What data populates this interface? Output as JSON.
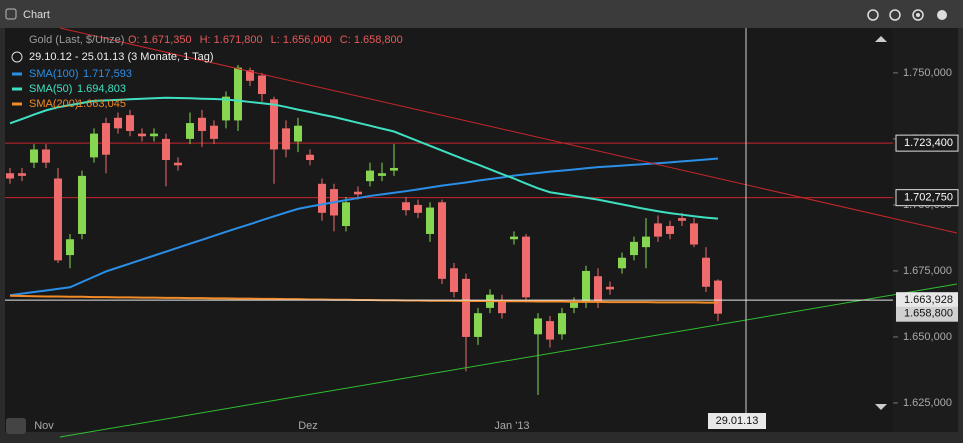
{
  "chart_data": {
    "type": "candlestick",
    "title": "Chart",
    "instrument": "Gold (Last, $/Unze)",
    "ohlc_labels": [
      "O: 1.671,350",
      "H: 1.671,800",
      "L: 1.656,000",
      "C: 1.658,800"
    ],
    "range": "29.10.12 - 25.01.13 (3 Monate, 1 Tag)",
    "categories": [
      null,
      null,
      null,
      "Nov",
      null,
      null,
      null,
      null,
      null,
      null,
      null,
      null,
      null,
      null,
      null,
      null,
      null,
      null,
      null,
      null,
      null,
      null,
      null,
      null,
      null,
      "Dez",
      null,
      null,
      null,
      null,
      null,
      null,
      null,
      null,
      null,
      null,
      null,
      null,
      null,
      null,
      null,
      null,
      "Jan '13",
      null,
      null,
      null,
      null,
      null,
      null,
      null,
      null,
      null,
      null,
      null,
      null,
      null,
      null,
      null,
      null,
      null
    ],
    "open": [
      1712,
      1712,
      1716,
      1721,
      1710,
      1681,
      1689,
      1718,
      1731,
      1733,
      1734,
      1727,
      1726,
      1725,
      1716,
      1725,
      1733,
      1730,
      1732,
      1732,
      1751,
      1749,
      1740,
      1729,
      1724,
      1719,
      1708,
      1706,
      1692,
      1705,
      1709,
      1711,
      1713,
      1701,
      1700,
      1689,
      1701,
      1676,
      1672,
      1650,
      1661,
      1664,
      1687,
      1688,
      1651,
      1656,
      1651,
      1661,
      1663,
      1673,
      1669,
      1676,
      1681,
      1684,
      1693,
      1692,
      1695,
      1693,
      1680,
      1671.35
    ],
    "high": [
      1714,
      1714,
      1723,
      1723,
      1714,
      1689,
      1713,
      1729,
      1733,
      1735,
      1736,
      1729,
      1729,
      1727,
      1718,
      1735,
      1736,
      1732,
      1743,
      1753,
      1752,
      1750,
      1741,
      1732,
      1733,
      1721,
      1710,
      1708,
      1703,
      1707,
      1716,
      1716,
      1723,
      1703,
      1702,
      1701,
      1702,
      1678,
      1674,
      1661,
      1668,
      1666,
      1690,
      1689,
      1659,
      1658,
      1661,
      1665,
      1677,
      1676,
      1671,
      1682,
      1688,
      1695,
      1696,
      1694,
      1697,
      1695,
      1684,
      1671.8
    ],
    "low": [
      1708,
      1709,
      1714,
      1714,
      1678,
      1676,
      1687,
      1716,
      1712,
      1727,
      1726,
      1724,
      1724,
      1707,
      1713,
      1723,
      1722,
      1723,
      1729,
      1728,
      1745,
      1739,
      1708,
      1718,
      1720,
      1715,
      1694,
      1690,
      1690,
      1702,
      1707,
      1709,
      1711,
      1696,
      1695,
      1686,
      1670,
      1665,
      1637,
      1647,
      1659,
      1657,
      1685,
      1663,
      1628,
      1646,
      1649,
      1659,
      1661,
      1661,
      1666,
      1674,
      1679,
      1676,
      1686,
      1687,
      1692,
      1684,
      1667,
      1656
    ],
    "close": [
      1710,
      1711,
      1721,
      1716,
      1679,
      1687,
      1711,
      1727,
      1719,
      1729,
      1728,
      1726,
      1727,
      1717,
      1715,
      1731,
      1728,
      1725,
      1741,
      1752,
      1747,
      1742,
      1721,
      1721,
      1730,
      1717,
      1697,
      1696,
      1701,
      1704,
      1713,
      1712,
      1714,
      1698,
      1697,
      1699,
      1672,
      1667,
      1650,
      1659,
      1666,
      1659,
      1688,
      1665,
      1657,
      1649,
      1659,
      1663,
      1675,
      1663,
      1668,
      1680,
      1686,
      1688,
      1688,
      1689,
      1694,
      1685,
      1669,
      1658.8
    ],
    "up_color": "#86d651",
    "down_color": "#f06b6b",
    "series": [
      {
        "name": "SMA(100)",
        "last": "1.717,593",
        "color": "#2b8fe8",
        "values": [
          1665.8,
          1666.4,
          1667,
          1667.6,
          1668.2,
          1668.8,
          1670.8,
          1672.8,
          1674.8,
          1676.3,
          1677.8,
          1679.3,
          1680.8,
          1682.3,
          1683.8,
          1685.3,
          1686.8,
          1688.3,
          1689.8,
          1691.3,
          1692.7,
          1694.2,
          1695.7,
          1697.1,
          1698.5,
          1699.4,
          1700.2,
          1701,
          1701.8,
          1702.6,
          1703.4,
          1704,
          1704.6,
          1705.2,
          1705.9,
          1706.6,
          1707.3,
          1707.9,
          1708.5,
          1709.2,
          1709.8,
          1710.4,
          1711.1,
          1711.6,
          1712.1,
          1712.6,
          1713,
          1713.4,
          1713.9,
          1714.3,
          1714.6,
          1714.9,
          1715.2,
          1715.5,
          1715.8,
          1716.1,
          1716.5,
          1716.8,
          1717.2,
          1717.6
        ]
      },
      {
        "name": "SMA(50)",
        "last": "1.694,803",
        "color": "#3fe0c2",
        "values": [
          1730.9,
          1732.5,
          1734.2,
          1735.8,
          1737,
          1737.8,
          1738.6,
          1739.4,
          1739.6,
          1739.8,
          1740,
          1740.2,
          1740.4,
          1740.6,
          1740.5,
          1740.4,
          1740.2,
          1740.1,
          1739.9,
          1739.5,
          1739,
          1738.5,
          1738,
          1737.1,
          1736.1,
          1735.2,
          1734.2,
          1733.3,
          1732.2,
          1731.1,
          1730,
          1728.9,
          1727.8,
          1726,
          1724.2,
          1722.4,
          1720.6,
          1718.8,
          1717,
          1715.3,
          1713.5,
          1711.7,
          1710,
          1708.1,
          1706.3,
          1704.8,
          1704.1,
          1703.4,
          1702.7,
          1702,
          1701.1,
          1700.2,
          1699.3,
          1698.4,
          1697.6,
          1696.9,
          1696.3,
          1695.7,
          1695.2,
          1694.8
        ]
      },
      {
        "name": "SMA(200)",
        "last": "1.663,045",
        "color": "#f28a26",
        "values": [
          1665.6,
          1665.5,
          1665.4,
          1665.3,
          1665.3,
          1665.2,
          1665.2,
          1665.1,
          1665.1,
          1665,
          1665,
          1664.9,
          1664.9,
          1664.8,
          1664.8,
          1664.7,
          1664.7,
          1664.6,
          1664.6,
          1664.5,
          1664.5,
          1664.4,
          1664.4,
          1664.3,
          1664.3,
          1664.2,
          1664.2,
          1664.1,
          1664.1,
          1664,
          1664,
          1663.9,
          1663.9,
          1663.8,
          1663.8,
          1663.7,
          1663.7,
          1663.7,
          1663.6,
          1663.6,
          1663.6,
          1663.5,
          1663.5,
          1663.5,
          1663.4,
          1663.4,
          1663.4,
          1663.3,
          1663.3,
          1663.3,
          1663.2,
          1663.2,
          1663.2,
          1663.2,
          1663.1,
          1663.1,
          1663.1,
          1663.1,
          1663,
          1663
        ]
      }
    ],
    "ylim": [
      1614,
      1767
    ],
    "yticks": [
      {
        "value": 1625,
        "label": "1.625,000"
      },
      {
        "value": 1650,
        "label": "1.650,000"
      },
      {
        "value": 1675,
        "label": "1.675,000"
      },
      {
        "value": 1700,
        "label": "1.700,000"
      },
      {
        "value": 1725,
        "label": "1.725,000"
      },
      {
        "value": 1750,
        "label": "1.750,000"
      }
    ],
    "levels": [
      {
        "value": 1723.4,
        "label": "1.723,400"
      },
      {
        "value": 1702.75,
        "label": "1.702,750"
      }
    ],
    "last_price": {
      "value": 1663.928,
      "label": "1.663,928"
    },
    "close_marker": {
      "value": 1658.8,
      "label": "1.658,800"
    },
    "crosshair_date": "29.01.13"
  }
}
